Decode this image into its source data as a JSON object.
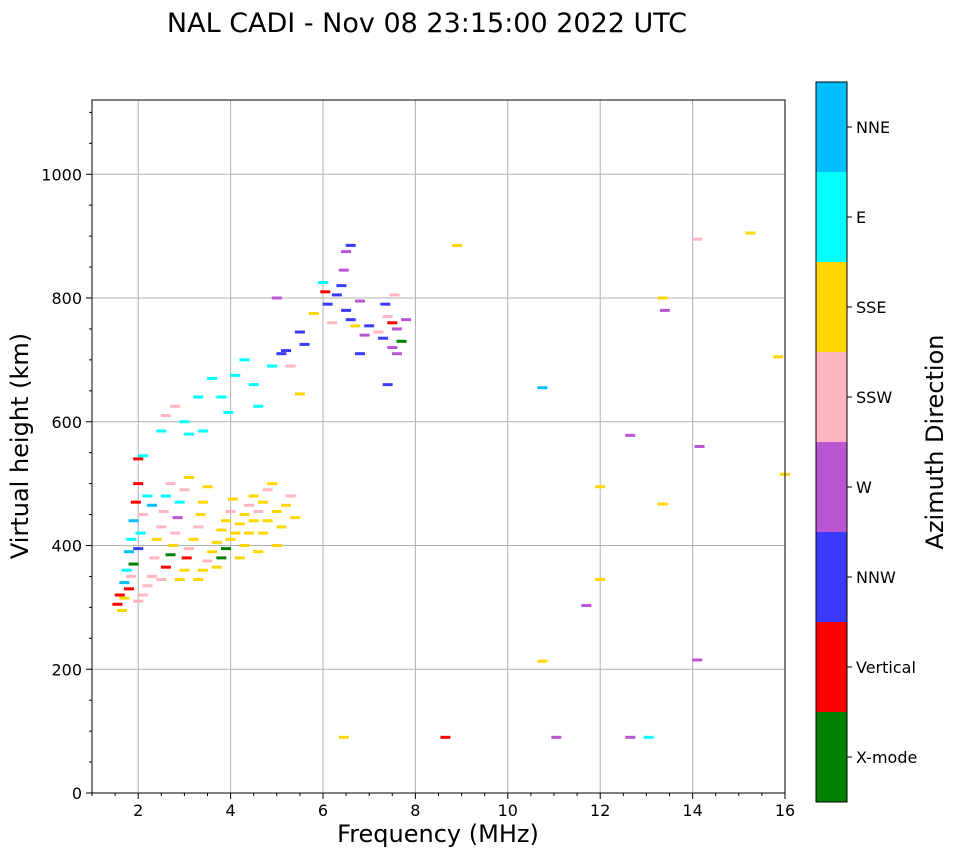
{
  "chart_data": {
    "type": "scatter",
    "title": "NAL CADI - Nov 08 23:15:00 2022 UTC",
    "xlabel": "Frequency (MHz)",
    "ylabel": "Virtual height (km)",
    "xlim": [
      1,
      16
    ],
    "ylim": [
      0,
      1120
    ],
    "xticks": [
      "2",
      "4",
      "6",
      "8",
      "10",
      "12",
      "14",
      "16"
    ],
    "yticks": [
      "0",
      "200",
      "400",
      "600",
      "800",
      "1000"
    ],
    "grid": true,
    "colorbar": {
      "label": "Azimuth Direction",
      "categories": [
        {
          "name": "NNE",
          "color": "#00BFFF"
        },
        {
          "name": "E",
          "color": "#00FFFF"
        },
        {
          "name": "SSE",
          "color": "#FFD700"
        },
        {
          "name": "SSW",
          "color": "#FFB6C1"
        },
        {
          "name": "W",
          "color": "#BA55D3"
        },
        {
          "name": "NNW",
          "color": "#3A3AFF"
        },
        {
          "name": "Vertical",
          "color": "#FF0000"
        },
        {
          "name": "X-mode",
          "color": "#008000"
        }
      ]
    },
    "points": [
      {
        "f": 1.55,
        "h": 305,
        "c": "Vertical"
      },
      {
        "f": 1.6,
        "h": 320,
        "c": "Vertical"
      },
      {
        "f": 1.65,
        "h": 295,
        "c": "SSE"
      },
      {
        "f": 1.7,
        "h": 340,
        "c": "NNE"
      },
      {
        "f": 1.75,
        "h": 360,
        "c": "E"
      },
      {
        "f": 1.8,
        "h": 390,
        "c": "NNE"
      },
      {
        "f": 1.85,
        "h": 410,
        "c": "E"
      },
      {
        "f": 1.9,
        "h": 440,
        "c": "NNE"
      },
      {
        "f": 1.95,
        "h": 470,
        "c": "Vertical"
      },
      {
        "f": 2.0,
        "h": 500,
        "c": "Vertical"
      },
      {
        "f": 2.0,
        "h": 540,
        "c": "Vertical"
      },
      {
        "f": 1.7,
        "h": 315,
        "c": "SSE"
      },
      {
        "f": 1.8,
        "h": 330,
        "c": "Vertical"
      },
      {
        "f": 1.85,
        "h": 350,
        "c": "SSW"
      },
      {
        "f": 1.9,
        "h": 370,
        "c": "X-mode"
      },
      {
        "f": 2.0,
        "h": 395,
        "c": "NNW"
      },
      {
        "f": 2.05,
        "h": 420,
        "c": "E"
      },
      {
        "f": 2.1,
        "h": 450,
        "c": "SSW"
      },
      {
        "f": 2.2,
        "h": 480,
        "c": "E"
      },
      {
        "f": 2.3,
        "h": 465,
        "c": "NNE"
      },
      {
        "f": 2.0,
        "h": 310,
        "c": "SSW"
      },
      {
        "f": 2.1,
        "h": 320,
        "c": "SSW"
      },
      {
        "f": 2.2,
        "h": 335,
        "c": "SSW"
      },
      {
        "f": 2.3,
        "h": 350,
        "c": "SSW"
      },
      {
        "f": 2.35,
        "h": 380,
        "c": "SSW"
      },
      {
        "f": 2.4,
        "h": 410,
        "c": "SSE"
      },
      {
        "f": 2.5,
        "h": 430,
        "c": "SSW"
      },
      {
        "f": 2.55,
        "h": 455,
        "c": "SSW"
      },
      {
        "f": 2.6,
        "h": 480,
        "c": "E"
      },
      {
        "f": 2.7,
        "h": 500,
        "c": "SSW"
      },
      {
        "f": 2.5,
        "h": 345,
        "c": "SSW"
      },
      {
        "f": 2.6,
        "h": 365,
        "c": "Vertical"
      },
      {
        "f": 2.7,
        "h": 385,
        "c": "X-mode"
      },
      {
        "f": 2.75,
        "h": 400,
        "c": "SSE"
      },
      {
        "f": 2.8,
        "h": 420,
        "c": "SSW"
      },
      {
        "f": 2.85,
        "h": 445,
        "c": "W"
      },
      {
        "f": 2.9,
        "h": 470,
        "c": "E"
      },
      {
        "f": 3.0,
        "h": 490,
        "c": "SSW"
      },
      {
        "f": 3.1,
        "h": 510,
        "c": "SSE"
      },
      {
        "f": 2.9,
        "h": 345,
        "c": "SSE"
      },
      {
        "f": 3.0,
        "h": 360,
        "c": "SSE"
      },
      {
        "f": 3.05,
        "h": 380,
        "c": "Vertical"
      },
      {
        "f": 3.1,
        "h": 395,
        "c": "SSW"
      },
      {
        "f": 3.2,
        "h": 410,
        "c": "SSE"
      },
      {
        "f": 3.3,
        "h": 430,
        "c": "SSW"
      },
      {
        "f": 3.35,
        "h": 450,
        "c": "SSE"
      },
      {
        "f": 3.4,
        "h": 470,
        "c": "SSE"
      },
      {
        "f": 3.5,
        "h": 495,
        "c": "SSE"
      },
      {
        "f": 3.3,
        "h": 345,
        "c": "SSE"
      },
      {
        "f": 3.4,
        "h": 360,
        "c": "SSE"
      },
      {
        "f": 3.5,
        "h": 375,
        "c": "SSW"
      },
      {
        "f": 3.6,
        "h": 390,
        "c": "SSE"
      },
      {
        "f": 3.7,
        "h": 405,
        "c": "SSE"
      },
      {
        "f": 3.8,
        "h": 425,
        "c": "SSE"
      },
      {
        "f": 3.9,
        "h": 440,
        "c": "SSE"
      },
      {
        "f": 4.0,
        "h": 455,
        "c": "SSW"
      },
      {
        "f": 4.05,
        "h": 475,
        "c": "SSE"
      },
      {
        "f": 3.7,
        "h": 365,
        "c": "SSE"
      },
      {
        "f": 3.8,
        "h": 380,
        "c": "X-mode"
      },
      {
        "f": 3.9,
        "h": 395,
        "c": "X-mode"
      },
      {
        "f": 4.0,
        "h": 410,
        "c": "SSE"
      },
      {
        "f": 4.1,
        "h": 420,
        "c": "SSE"
      },
      {
        "f": 4.2,
        "h": 435,
        "c": "SSE"
      },
      {
        "f": 4.3,
        "h": 450,
        "c": "SSE"
      },
      {
        "f": 4.4,
        "h": 465,
        "c": "SSW"
      },
      {
        "f": 4.5,
        "h": 480,
        "c": "SSE"
      },
      {
        "f": 4.2,
        "h": 380,
        "c": "SSE"
      },
      {
        "f": 4.3,
        "h": 400,
        "c": "SSE"
      },
      {
        "f": 4.4,
        "h": 420,
        "c": "SSE"
      },
      {
        "f": 4.5,
        "h": 440,
        "c": "SSE"
      },
      {
        "f": 4.6,
        "h": 455,
        "c": "SSW"
      },
      {
        "f": 4.7,
        "h": 470,
        "c": "SSE"
      },
      {
        "f": 4.8,
        "h": 490,
        "c": "SSW"
      },
      {
        "f": 4.9,
        "h": 500,
        "c": "SSE"
      },
      {
        "f": 4.6,
        "h": 390,
        "c": "SSE"
      },
      {
        "f": 4.7,
        "h": 420,
        "c": "SSE"
      },
      {
        "f": 4.8,
        "h": 440,
        "c": "SSE"
      },
      {
        "f": 5.0,
        "h": 455,
        "c": "SSE"
      },
      {
        "f": 5.0,
        "h": 400,
        "c": "SSE"
      },
      {
        "f": 5.1,
        "h": 430,
        "c": "SSE"
      },
      {
        "f": 5.2,
        "h": 465,
        "c": "SSE"
      },
      {
        "f": 5.3,
        "h": 480,
        "c": "SSW"
      },
      {
        "f": 5.4,
        "h": 445,
        "c": "SSE"
      },
      {
        "f": 2.1,
        "h": 545,
        "c": "E"
      },
      {
        "f": 2.5,
        "h": 585,
        "c": "E"
      },
      {
        "f": 2.6,
        "h": 610,
        "c": "SSW"
      },
      {
        "f": 2.8,
        "h": 625,
        "c": "SSW"
      },
      {
        "f": 3.0,
        "h": 600,
        "c": "E"
      },
      {
        "f": 3.1,
        "h": 580,
        "c": "E"
      },
      {
        "f": 3.3,
        "h": 640,
        "c": "E"
      },
      {
        "f": 3.4,
        "h": 585,
        "c": "E"
      },
      {
        "f": 3.6,
        "h": 670,
        "c": "E"
      },
      {
        "f": 3.8,
        "h": 640,
        "c": "E"
      },
      {
        "f": 3.95,
        "h": 615,
        "c": "E"
      },
      {
        "f": 4.1,
        "h": 675,
        "c": "E"
      },
      {
        "f": 4.3,
        "h": 700,
        "c": "E"
      },
      {
        "f": 4.5,
        "h": 660,
        "c": "E"
      },
      {
        "f": 4.6,
        "h": 625,
        "c": "E"
      },
      {
        "f": 4.9,
        "h": 690,
        "c": "E"
      },
      {
        "f": 5.1,
        "h": 710,
        "c": "NNW"
      },
      {
        "f": 5.3,
        "h": 690,
        "c": "SSW"
      },
      {
        "f": 5.5,
        "h": 745,
        "c": "NNW"
      },
      {
        "f": 5.6,
        "h": 725,
        "c": "NNW"
      },
      {
        "f": 5.5,
        "h": 645,
        "c": "SSE"
      },
      {
        "f": 5.0,
        "h": 800,
        "c": "W"
      },
      {
        "f": 5.2,
        "h": 715,
        "c": "NNW"
      },
      {
        "f": 5.8,
        "h": 775,
        "c": "SSE"
      },
      {
        "f": 6.0,
        "h": 825,
        "c": "E"
      },
      {
        "f": 6.05,
        "h": 810,
        "c": "Vertical"
      },
      {
        "f": 6.1,
        "h": 790,
        "c": "NNW"
      },
      {
        "f": 6.2,
        "h": 760,
        "c": "SSW"
      },
      {
        "f": 6.3,
        "h": 805,
        "c": "NNW"
      },
      {
        "f": 6.4,
        "h": 820,
        "c": "NNW"
      },
      {
        "f": 6.45,
        "h": 845,
        "c": "W"
      },
      {
        "f": 6.5,
        "h": 875,
        "c": "W"
      },
      {
        "f": 6.6,
        "h": 885,
        "c": "NNW"
      },
      {
        "f": 6.5,
        "h": 780,
        "c": "NNW"
      },
      {
        "f": 6.6,
        "h": 765,
        "c": "NNW"
      },
      {
        "f": 6.7,
        "h": 755,
        "c": "SSE"
      },
      {
        "f": 6.8,
        "h": 795,
        "c": "W"
      },
      {
        "f": 6.8,
        "h": 710,
        "c": "NNW"
      },
      {
        "f": 6.9,
        "h": 740,
        "c": "W"
      },
      {
        "f": 7.0,
        "h": 755,
        "c": "NNW"
      },
      {
        "f": 7.2,
        "h": 745,
        "c": "SSW"
      },
      {
        "f": 7.3,
        "h": 735,
        "c": "NNW"
      },
      {
        "f": 7.35,
        "h": 790,
        "c": "NNW"
      },
      {
        "f": 7.4,
        "h": 770,
        "c": "SSW"
      },
      {
        "f": 7.5,
        "h": 760,
        "c": "Vertical"
      },
      {
        "f": 7.6,
        "h": 750,
        "c": "W"
      },
      {
        "f": 7.7,
        "h": 730,
        "c": "X-mode"
      },
      {
        "f": 7.8,
        "h": 765,
        "c": "W"
      },
      {
        "f": 7.5,
        "h": 720,
        "c": "W"
      },
      {
        "f": 7.55,
        "h": 805,
        "c": "SSW"
      },
      {
        "f": 7.6,
        "h": 710,
        "c": "W"
      },
      {
        "f": 7.4,
        "h": 660,
        "c": "NNW"
      },
      {
        "f": 8.9,
        "h": 885,
        "c": "SSE"
      },
      {
        "f": 10.75,
        "h": 655,
        "c": "NNE"
      },
      {
        "f": 13.35,
        "h": 800,
        "c": "SSE"
      },
      {
        "f": 13.4,
        "h": 780,
        "c": "W"
      },
      {
        "f": 14.1,
        "h": 895,
        "c": "SSW"
      },
      {
        "f": 15.25,
        "h": 905,
        "c": "SSE"
      },
      {
        "f": 15.85,
        "h": 705,
        "c": "SSE"
      },
      {
        "f": 12.65,
        "h": 578,
        "c": "W"
      },
      {
        "f": 14.15,
        "h": 560,
        "c": "W"
      },
      {
        "f": 12.0,
        "h": 495,
        "c": "SSE"
      },
      {
        "f": 13.35,
        "h": 467,
        "c": "SSE"
      },
      {
        "f": 16.0,
        "h": 515,
        "c": "SSE"
      },
      {
        "f": 12.0,
        "h": 345,
        "c": "SSE"
      },
      {
        "f": 11.7,
        "h": 303,
        "c": "W"
      },
      {
        "f": 10.75,
        "h": 213,
        "c": "SSE"
      },
      {
        "f": 14.1,
        "h": 215,
        "c": "W"
      },
      {
        "f": 6.45,
        "h": 90,
        "c": "SSE"
      },
      {
        "f": 8.65,
        "h": 90,
        "c": "Vertical"
      },
      {
        "f": 11.05,
        "h": 90,
        "c": "W"
      },
      {
        "f": 12.65,
        "h": 90,
        "c": "W"
      },
      {
        "f": 13.05,
        "h": 90,
        "c": "E"
      }
    ]
  }
}
